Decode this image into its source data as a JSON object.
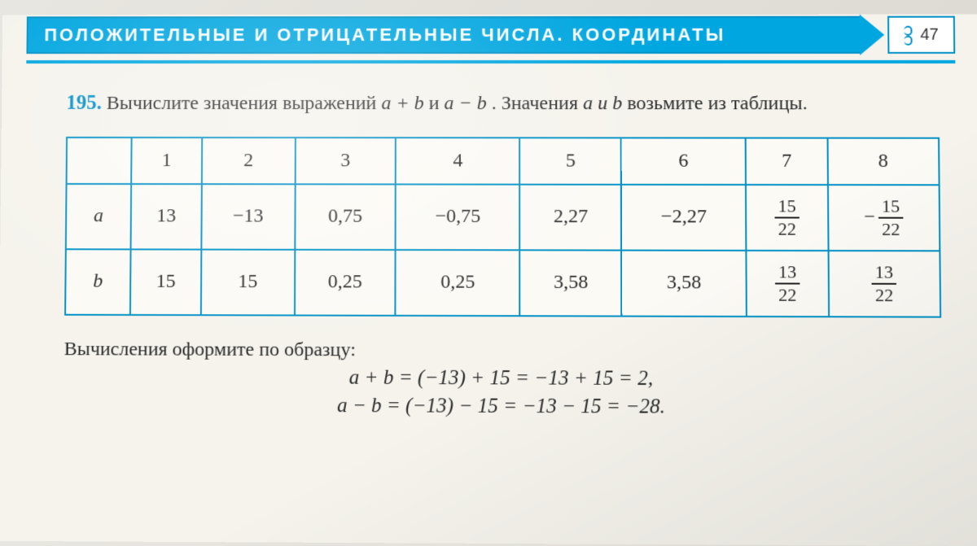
{
  "header": {
    "title": "ПОЛОЖИТЕЛЬНЫЕ И ОТРИЦАТЕЛЬНЫЕ ЧИСЛА. КООРДИНАТЫ",
    "page_number": "47",
    "accent_color": "#00a6e0",
    "border_color": "#0090c5"
  },
  "problem": {
    "number": "195.",
    "text_part1": "Вычислите значения выражений ",
    "expr1": "a + b",
    "text_and": " и ",
    "expr2": "a − b",
    "text_part2": ". Значения ",
    "vars": "a и b",
    "text_part3": " возьмите из таблицы."
  },
  "table": {
    "columns": [
      "1",
      "2",
      "3",
      "4",
      "5",
      "6",
      "7",
      "8"
    ],
    "rows": [
      {
        "label": "a",
        "cells": [
          {
            "v": "13"
          },
          {
            "v": "−13"
          },
          {
            "v": "0,75"
          },
          {
            "v": "−0,75"
          },
          {
            "v": "2,27"
          },
          {
            "v": "−2,27"
          },
          {
            "frac": {
              "num": "15",
              "den": "22"
            }
          },
          {
            "neg_frac": {
              "num": "15",
              "den": "22"
            }
          }
        ]
      },
      {
        "label": "b",
        "cells": [
          {
            "v": "15"
          },
          {
            "v": "15"
          },
          {
            "v": "0,25"
          },
          {
            "v": "0,25"
          },
          {
            "v": "3,58"
          },
          {
            "v": "3,58"
          },
          {
            "frac": {
              "num": "13",
              "den": "22"
            }
          },
          {
            "frac": {
              "num": "13",
              "den": "22"
            }
          }
        ]
      }
    ],
    "border_color": "#0090c5",
    "cell_bg": "#fbfaf5",
    "font_size": 24
  },
  "example": {
    "intro": "Вычисления оформите по образцу:",
    "line1": "a + b = (−13) + 15 = −13 + 15 = 2,",
    "line2": "a − b = (−13) − 15 = −13 − 15 = −28."
  },
  "page_bg": "#f5f3ec"
}
